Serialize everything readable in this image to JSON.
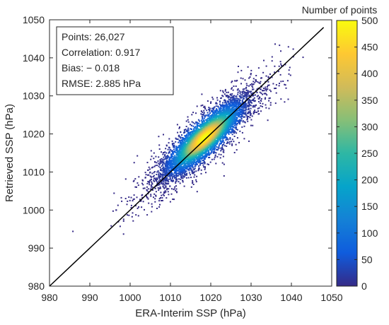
{
  "chart_data": {
    "type": "scatter",
    "xlabel": "ERA-Interim SSP (hPa)",
    "ylabel": "Retrieved SSP (hPa)",
    "xlim": [
      980,
      1050
    ],
    "ylim": [
      980,
      1050
    ],
    "xticks": [
      "980",
      "990",
      "1000",
      "1010",
      "1020",
      "1030",
      "1040",
      "1050"
    ],
    "yticks": [
      "980",
      "990",
      "1000",
      "1010",
      "1020",
      "1030",
      "1040",
      "1050"
    ],
    "grid": false,
    "annotation_box": {
      "position": "top-left",
      "lines": [
        "Points: 26,027",
        "Correlation: 0.917",
        "Bias: − 0.018",
        "RMSE: 2.885 hPa"
      ]
    },
    "reference_line": {
      "x": [
        980,
        1048
      ],
      "y": [
        980,
        1048
      ],
      "color": "#000000"
    },
    "density_center": {
      "x": 1018.5,
      "y": 1019
    },
    "colorbar": {
      "title": "Number of points",
      "min": 0,
      "max": 500,
      "ticks": [
        "0",
        "50",
        "100",
        "150",
        "200",
        "250",
        "300",
        "350",
        "400",
        "450",
        "500"
      ],
      "colormap": [
        "#352a87",
        "#0f5cdd",
        "#1481d6",
        "#06a4ca",
        "#2eb7a4",
        "#87bf77",
        "#d1bb59",
        "#fec832",
        "#f9fb0e"
      ]
    }
  }
}
